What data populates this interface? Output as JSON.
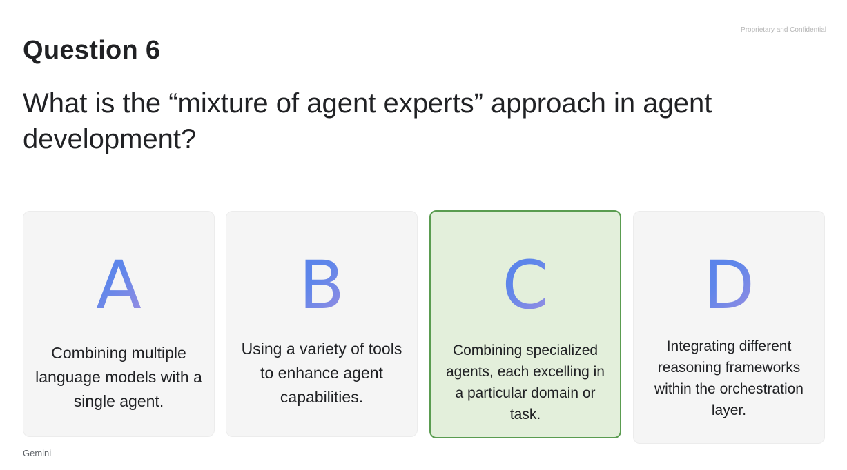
{
  "header": {
    "confidential": "Proprietary and Confidential",
    "question_number": "Question 6",
    "question_text": "What is the “mixture of agent experts” approach in agent development?"
  },
  "options": [
    {
      "letter": "A",
      "text": "Combining multiple language models with a single agent.",
      "selected": false
    },
    {
      "letter": "B",
      "text": "Using a variety of tools to enhance agent capabilities.",
      "selected": false
    },
    {
      "letter": "C",
      "text": "Combining specialized agents, each excelling in a particular domain or task.",
      "selected": true
    },
    {
      "letter": "D",
      "text": "Integrating different reasoning frameworks within the orchestration layer.",
      "selected": false
    }
  ],
  "colors": {
    "selected_background": "#e3efdb",
    "selected_border": "#5a9c50",
    "card_background": "#f5f5f5",
    "letter_gradient": [
      "#4a7de8",
      "#a48fe0",
      "#e28cc8"
    ]
  },
  "footer": {
    "brand": "Gemini"
  }
}
